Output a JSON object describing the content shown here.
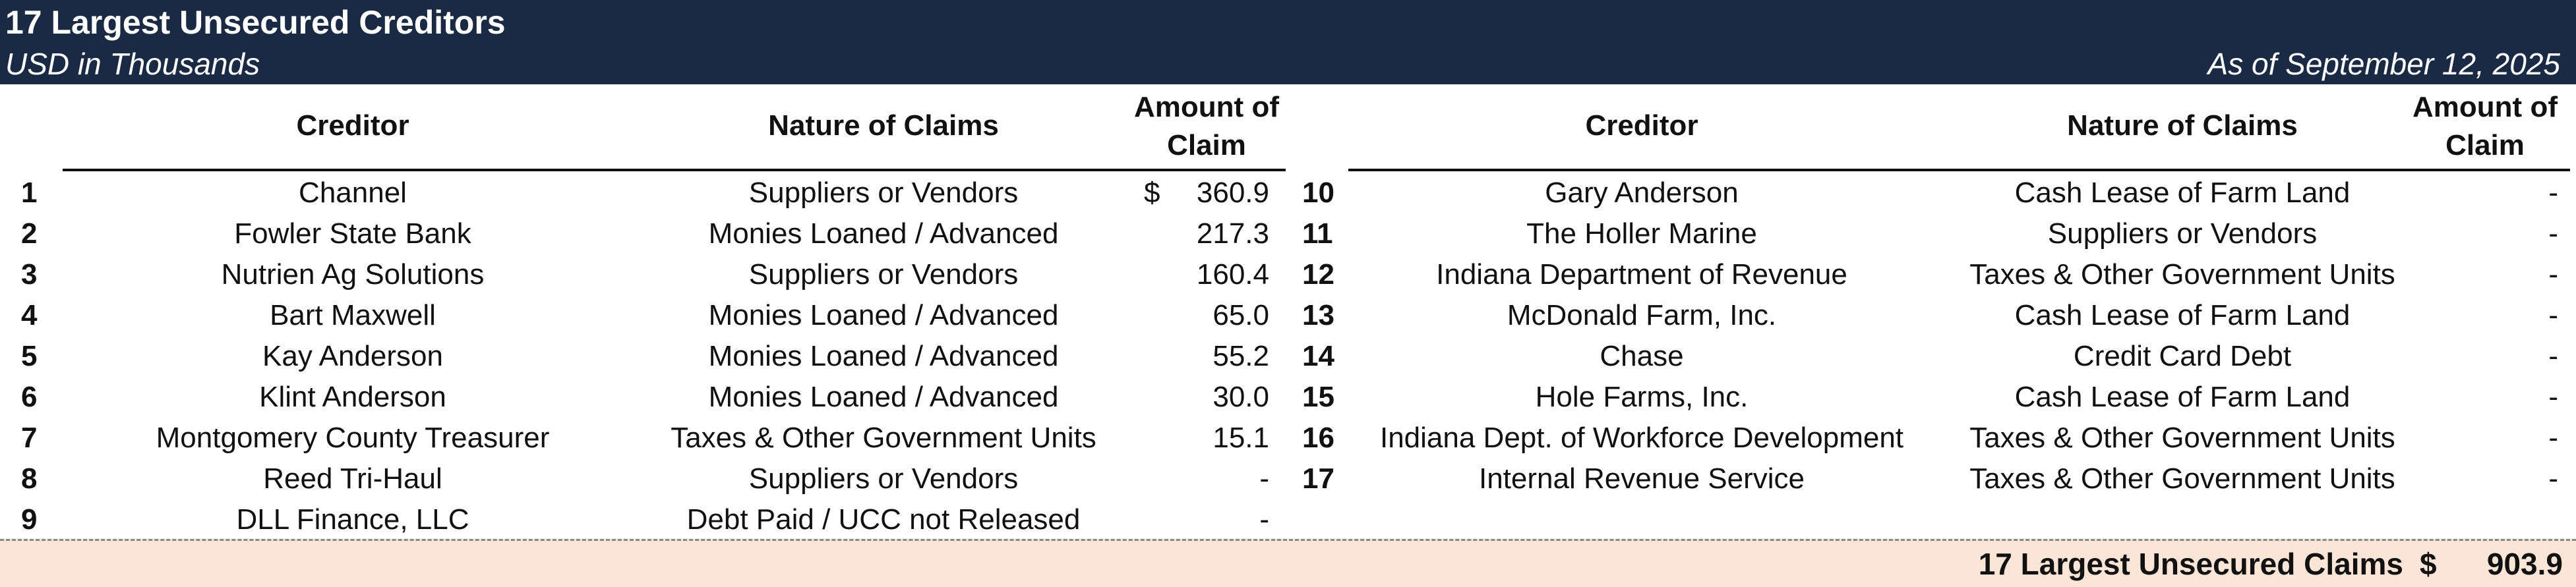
{
  "header": {
    "title": "17 Largest Unsecured Creditors",
    "units": "USD in Thousands",
    "as_of": "As of September 12, 2025"
  },
  "columns": {
    "creditor": "Creditor",
    "nature": "Nature of Claims",
    "amount_line1": "Amount of",
    "amount_line2": "Claim"
  },
  "left_rows": [
    {
      "num": "1",
      "creditor": "Channel",
      "nature": "Suppliers or Vendors",
      "currency": "$",
      "amount": "360.9"
    },
    {
      "num": "2",
      "creditor": "Fowler State Bank",
      "nature": "Monies Loaned / Advanced",
      "currency": "",
      "amount": "217.3"
    },
    {
      "num": "3",
      "creditor": "Nutrien Ag Solutions",
      "nature": "Suppliers or Vendors",
      "currency": "",
      "amount": "160.4"
    },
    {
      "num": "4",
      "creditor": "Bart Maxwell",
      "nature": "Monies Loaned / Advanced",
      "currency": "",
      "amount": "65.0"
    },
    {
      "num": "5",
      "creditor": "Kay Anderson",
      "nature": "Monies Loaned / Advanced",
      "currency": "",
      "amount": "55.2"
    },
    {
      "num": "6",
      "creditor": "Klint Anderson",
      "nature": "Monies Loaned / Advanced",
      "currency": "",
      "amount": "30.0"
    },
    {
      "num": "7",
      "creditor": "Montgomery County Treasurer",
      "nature": "Taxes & Other Government Units",
      "currency": "",
      "amount": "15.1"
    },
    {
      "num": "8",
      "creditor": "Reed Tri-Haul",
      "nature": "Suppliers or Vendors",
      "currency": "",
      "amount": "-"
    },
    {
      "num": "9",
      "creditor": "DLL Finance, LLC",
      "nature": "Debt Paid / UCC not Released",
      "currency": "",
      "amount": "-"
    }
  ],
  "right_rows": [
    {
      "num": "10",
      "creditor": "Gary Anderson",
      "nature": "Cash Lease of Farm Land",
      "amount": "-"
    },
    {
      "num": "11",
      "creditor": "The Holler Marine",
      "nature": "Suppliers or Vendors",
      "amount": "-"
    },
    {
      "num": "12",
      "creditor": "Indiana Department of Revenue",
      "nature": "Taxes & Other Government Units",
      "amount": "-"
    },
    {
      "num": "13",
      "creditor": "McDonald Farm, Inc.",
      "nature": "Cash Lease of Farm Land",
      "amount": "-"
    },
    {
      "num": "14",
      "creditor": "Chase",
      "nature": "Credit Card Debt",
      "amount": "-"
    },
    {
      "num": "15",
      "creditor": "Hole Farms, Inc.",
      "nature": "Cash Lease of Farm Land",
      "amount": "-"
    },
    {
      "num": "16",
      "creditor": "Indiana Dept. of Workforce Development",
      "nature": "Taxes & Other Government Units",
      "amount": "-"
    },
    {
      "num": "17",
      "creditor": "Internal Revenue Service",
      "nature": "Taxes & Other Government Units",
      "amount": "-"
    }
  ],
  "total": {
    "label": "17 Largest Unsecured Claims",
    "currency": "$",
    "value": "903.9"
  },
  "colors": {
    "header_bg": "#1b2a44",
    "total_bg": "#fbe5d6"
  }
}
